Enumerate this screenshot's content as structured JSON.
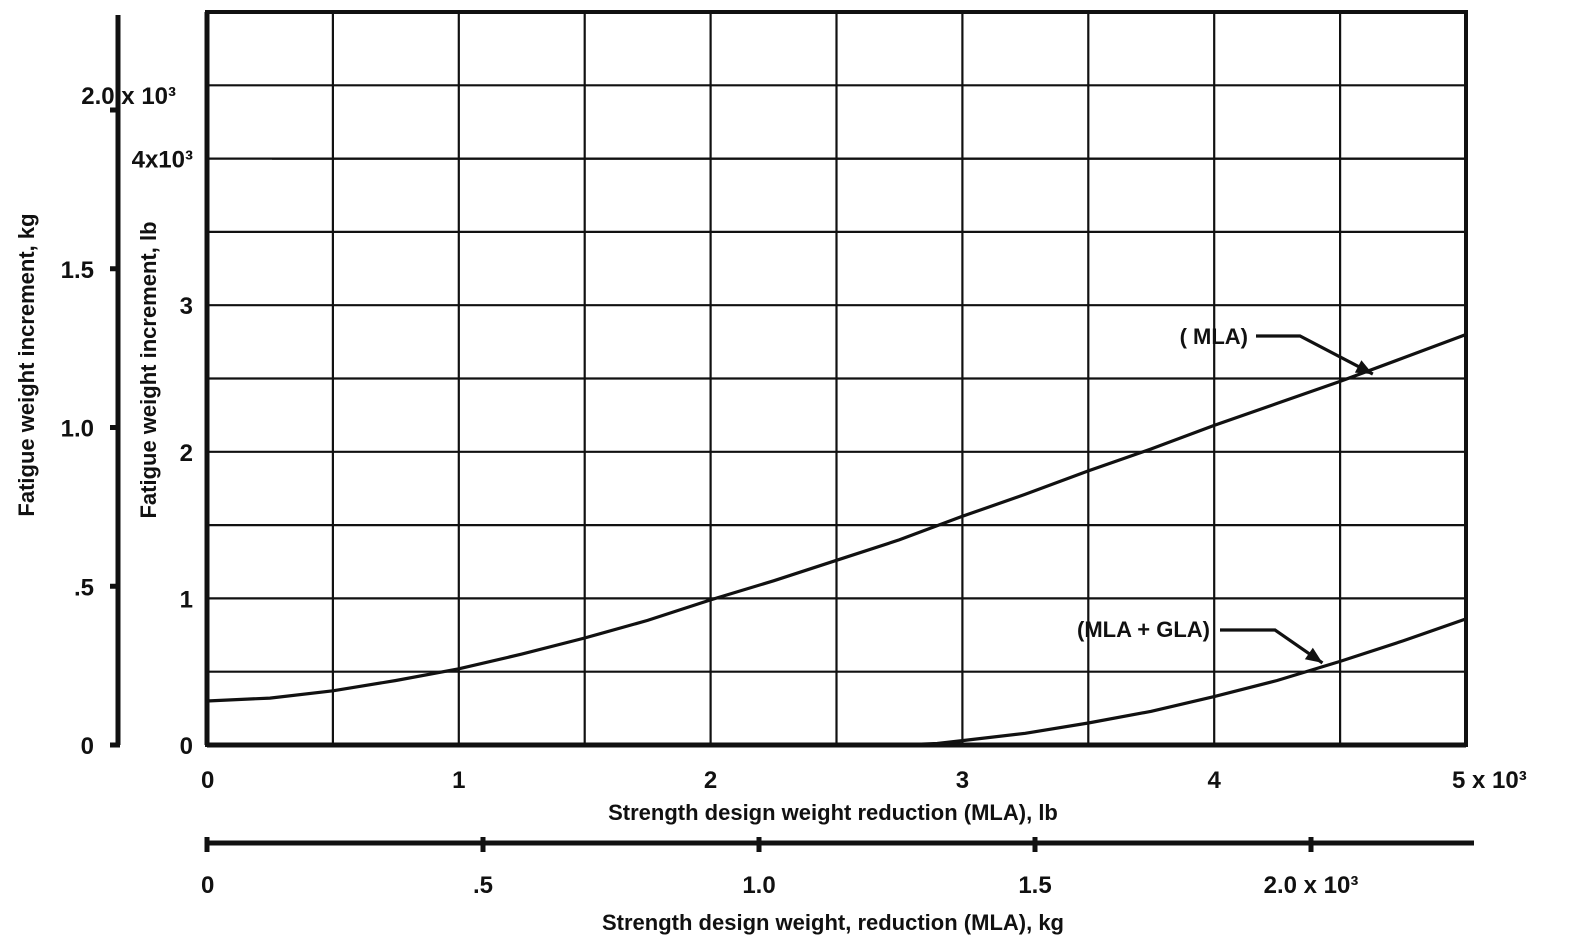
{
  "chart_data": {
    "type": "line",
    "x_axis": {
      "label": "Strength design weight reduction (MLA), lb",
      "range": [
        0,
        5000
      ],
      "ticks": [
        0,
        1000,
        2000,
        3000,
        4000,
        5000
      ],
      "tick_labels": [
        "0",
        "1",
        "2",
        "3",
        "4",
        "5 x 10³"
      ],
      "grid_step": 500
    },
    "x_axis_secondary": {
      "label": "Strength design weight, reduction (MLA), kg",
      "ticks": [
        0,
        500,
        1000,
        1500,
        2000
      ],
      "tick_labels": [
        "0",
        ".5",
        "1.0",
        "1.5",
        "2.0 x 10³"
      ]
    },
    "y_axis": {
      "label": "Fatigue weight increment, lb",
      "range": [
        0,
        5000
      ],
      "ticks": [
        0,
        1000,
        2000,
        3000,
        4000
      ],
      "tick_labels": [
        "0",
        "1",
        "2",
        "3",
        "4x10³"
      ],
      "grid_step": 500
    },
    "y_axis_secondary": {
      "label": "Fatigue weight increment, kg",
      "ticks": [
        0,
        500,
        1000,
        1500,
        2000
      ],
      "tick_labels": [
        "0",
        ".5",
        "1.0",
        "1.5",
        "2.0 x 10³"
      ]
    },
    "grid": true,
    "series": [
      {
        "name": "( MLA)",
        "x": [
          0,
          250,
          500,
          750,
          1000,
          1250,
          1500,
          1750,
          2000,
          2250,
          2500,
          2750,
          3000,
          3250,
          3500,
          3750,
          4000,
          4250,
          4500,
          4750,
          5000
        ],
        "y": [
          300,
          320,
          370,
          440,
          520,
          620,
          730,
          850,
          990,
          1120,
          1260,
          1400,
          1560,
          1710,
          1870,
          2020,
          2180,
          2330,
          2480,
          2640,
          2800
        ]
      },
      {
        "name": "(MLA + GLA)",
        "x": [
          0,
          2500,
          2750,
          2900,
          3000,
          3250,
          3500,
          3750,
          4000,
          4250,
          4500,
          4750,
          5000
        ],
        "y": [
          0,
          0,
          0,
          10,
          30,
          80,
          150,
          230,
          330,
          440,
          570,
          710,
          860
        ]
      }
    ],
    "annotations": [
      {
        "text": "( MLA)",
        "points_to_series": 0,
        "x": 4630,
        "y": 2530
      },
      {
        "text": "(MLA + GLA)",
        "points_to_series": 1,
        "x": 4430,
        "y": 560
      }
    ]
  }
}
